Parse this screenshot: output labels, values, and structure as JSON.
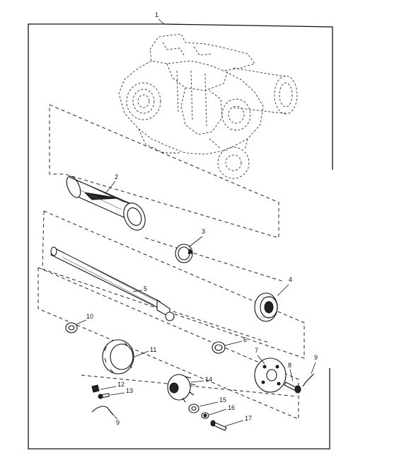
{
  "figure": {
    "assembly_callout": "1",
    "callouts": [
      "2",
      "3",
      "4",
      "5",
      "6",
      "7",
      "8",
      "9",
      "10",
      "11",
      "12",
      "13",
      "14",
      "15",
      "16",
      "17",
      "9"
    ]
  }
}
